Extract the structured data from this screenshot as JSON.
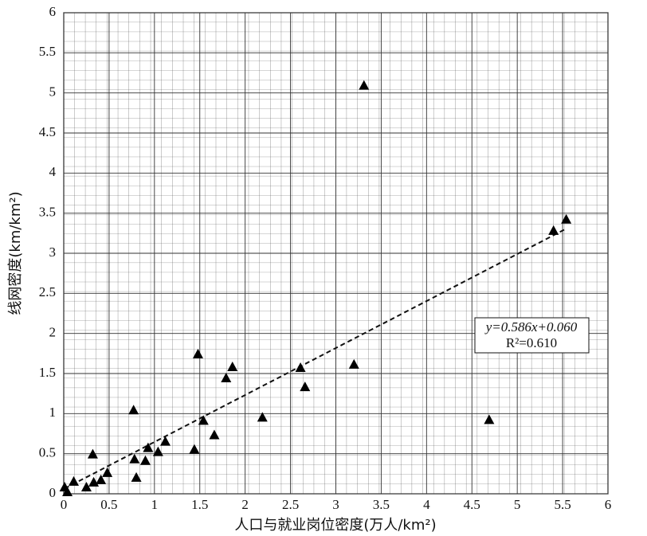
{
  "chart_data": {
    "type": "scatter",
    "x_label": "人口与就业岗位密度(万人/km²)",
    "y_label": "线网密度(km/km²)",
    "x": [
      3.31,
      5.54,
      5.4,
      1.48,
      1.86,
      1.79,
      2.61,
      3.2,
      2.66,
      0.77,
      2.19,
      4.69,
      1.54,
      1.66,
      1.12,
      0.93,
      1.04,
      1.44,
      0.32,
      0.78,
      0.9,
      0.8,
      0.48,
      0.41,
      0.33,
      0.25,
      0.11,
      0.01,
      0.04
    ],
    "values": [
      5.09,
      3.42,
      3.28,
      1.74,
      1.58,
      1.44,
      1.57,
      1.61,
      1.33,
      1.04,
      0.95,
      0.92,
      0.91,
      0.73,
      0.65,
      0.57,
      0.52,
      0.55,
      0.49,
      0.43,
      0.41,
      0.2,
      0.26,
      0.17,
      0.14,
      0.08,
      0.15,
      0.08,
      0.02
    ],
    "color": "#000000",
    "xlim": [
      0,
      6
    ],
    "xticks": [
      0,
      0.5,
      1,
      1.5,
      2,
      2.5,
      3,
      3.5,
      4,
      4.5,
      5,
      5.5,
      6
    ],
    "ylim": [
      0,
      6
    ],
    "yticks": [
      0,
      0.5,
      1,
      1.5,
      2,
      2.5,
      3,
      3.5,
      4,
      4.5,
      5,
      5.5,
      6
    ],
    "grid": true,
    "trendline": {
      "slope": 0.586,
      "intercept": 0.06,
      "label": "y=0.586x+0.060",
      "r2_label": "R²=0.610"
    }
  }
}
